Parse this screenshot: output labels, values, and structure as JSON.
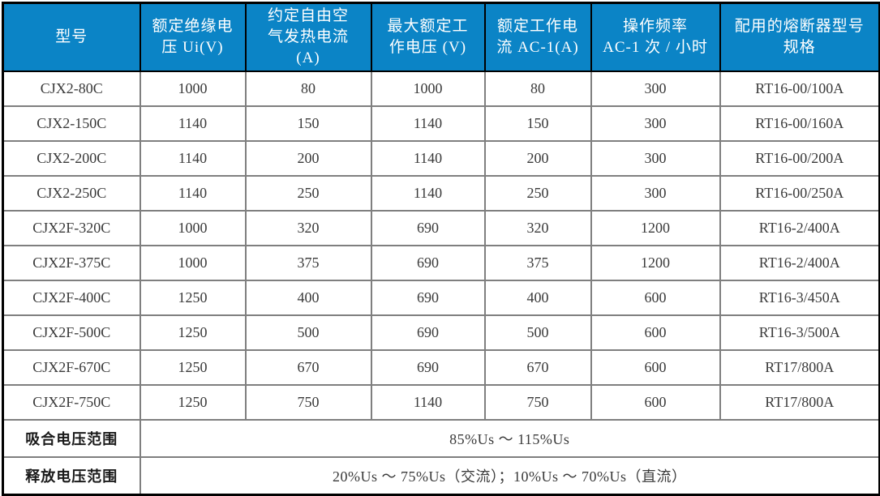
{
  "colors": {
    "header_bg": "#0b84c6",
    "header_text": "#ffffff",
    "outer_border": "#000000",
    "grid": "#7f7f7f",
    "body_text": "#3a3a3a"
  },
  "table": {
    "headers": [
      "型号",
      "额定绝缘电\n压 Ui(V)",
      "约定自由空\n气发热电流\n(A)",
      "最大额定工\n作电压 (V)",
      "额定工作电\n流 AC-1(A)",
      "操作频率\nAC-1 次 / 小时",
      "配用的熔断器型号\n规格"
    ],
    "rows": [
      [
        "CJX2-80C",
        "1000",
        "80",
        "1000",
        "80",
        "300",
        "RT16-00/100A"
      ],
      [
        "CJX2-150C",
        "1140",
        "150",
        "1140",
        "150",
        "300",
        "RT16-00/160A"
      ],
      [
        "CJX2-200C",
        "1140",
        "200",
        "1140",
        "200",
        "300",
        "RT16-00/200A"
      ],
      [
        "CJX2-250C",
        "1140",
        "250",
        "1140",
        "250",
        "300",
        "RT16-00/250A"
      ],
      [
        "CJX2F-320C",
        "1000",
        "320",
        "690",
        "320",
        "1200",
        "RT16-2/400A"
      ],
      [
        "CJX2F-375C",
        "1000",
        "375",
        "690",
        "375",
        "1200",
        "RT16-2/400A"
      ],
      [
        "CJX2F-400C",
        "1250",
        "400",
        "690",
        "400",
        "600",
        "RT16-3/450A"
      ],
      [
        "CJX2F-500C",
        "1250",
        "500",
        "690",
        "500",
        "600",
        "RT16-3/500A"
      ],
      [
        "CJX2F-670C",
        "1250",
        "670",
        "690",
        "670",
        "600",
        "RT17/800A"
      ],
      [
        "CJX2F-750C",
        "1250",
        "750",
        "1140",
        "750",
        "600",
        "RT17/800A"
      ]
    ],
    "footer_rows": [
      {
        "label": "吸合电压范围",
        "value": "85%Us ～ 115%Us"
      },
      {
        "label": "释放电压范围",
        "value": "20%Us ～ 75%Us（交流）；10%Us ～ 70%Us（直流）"
      }
    ]
  }
}
